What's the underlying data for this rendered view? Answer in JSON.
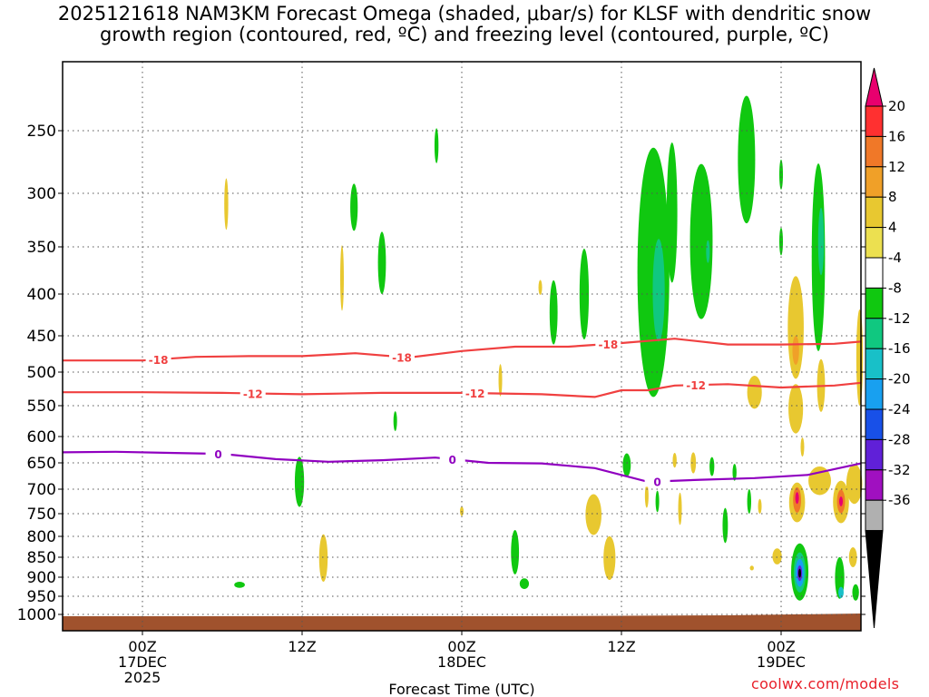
{
  "title_line1": "2025121618 NAM3KM Forecast Omega (shaded, μbar/s) for KLSF with dendritic snow",
  "title_line2": "growth region (contoured, red, ºC) and freezing level (contoured, purple, ºC)",
  "credit": "coolwx.com/models",
  "chart_data": {
    "type": "time-height cross section",
    "xlabel": "Forecast Time (UTC)",
    "y_axis": "pressure (hPa), inverted",
    "yticks": [
      250,
      300,
      350,
      400,
      450,
      500,
      550,
      600,
      650,
      700,
      750,
      800,
      850,
      900,
      950,
      1000
    ],
    "xticks": [
      {
        "hour": 6,
        "labels": [
          "00Z",
          "17DEC",
          "2025"
        ]
      },
      {
        "hour": 18,
        "labels": [
          "12Z"
        ]
      },
      {
        "hour": 30,
        "labels": [
          "00Z",
          "18DEC"
        ]
      },
      {
        "hour": 42,
        "labels": [
          "12Z"
        ]
      },
      {
        "hour": 54,
        "labels": [
          "00Z",
          "19DEC"
        ]
      }
    ],
    "xrange_hours": [
      0,
      60
    ],
    "grid": "dotted",
    "colorbar": {
      "labels": [
        "20",
        "16",
        "12",
        "8",
        "4",
        "-4",
        "-8",
        "-12",
        "-16",
        "-20",
        "-24",
        "-28",
        "-32",
        "-36"
      ],
      "colors": [
        "#e8006e",
        "#ff3030",
        "#f07828",
        "#f0a028",
        "#e8c830",
        "#ece050",
        "#ffffff",
        "#10c810",
        "#10c880",
        "#18c0c8",
        "#18a0f0",
        "#1850e8",
        "#6020d8",
        "#a010c0",
        "#b0b0b0",
        "#000000"
      ]
    },
    "contours": [
      {
        "label": "-18",
        "color": "#f04040",
        "points": [
          [
            0,
            484
          ],
          [
            6,
            484
          ],
          [
            10,
            479
          ],
          [
            14,
            478
          ],
          [
            18,
            478
          ],
          [
            22,
            474
          ],
          [
            26,
            480
          ],
          [
            30,
            471
          ],
          [
            34,
            465
          ],
          [
            38,
            465
          ],
          [
            42,
            460
          ],
          [
            46,
            454
          ],
          [
            50,
            462
          ],
          [
            54,
            462
          ],
          [
            58,
            461
          ],
          [
            60,
            458
          ]
        ]
      },
      {
        "label": "-12",
        "color": "#f04040",
        "points": [
          [
            0,
            530
          ],
          [
            6,
            530
          ],
          [
            12,
            531
          ],
          [
            18,
            533
          ],
          [
            24,
            531
          ],
          [
            30,
            531
          ],
          [
            36,
            533
          ],
          [
            40,
            537
          ],
          [
            42,
            527
          ],
          [
            44,
            527
          ],
          [
            46,
            520
          ],
          [
            50,
            518
          ],
          [
            54,
            523
          ],
          [
            58,
            520
          ],
          [
            60,
            516
          ]
        ]
      },
      {
        "label": "0",
        "color": "#9000c0",
        "points": [
          [
            0,
            630
          ],
          [
            4,
            629
          ],
          [
            8,
            631
          ],
          [
            12,
            633
          ],
          [
            16,
            643
          ],
          [
            20,
            648
          ],
          [
            24,
            645
          ],
          [
            28,
            640
          ],
          [
            32,
            650
          ],
          [
            36,
            651
          ],
          [
            40,
            660
          ],
          [
            44,
            686
          ],
          [
            48,
            682
          ],
          [
            52,
            679
          ],
          [
            56,
            673
          ],
          [
            60,
            651
          ]
        ]
      }
    ],
    "contour_label_positions": [
      {
        "label": "-18",
        "hour": 7.2
      },
      {
        "label": "-18",
        "hour": 25.5
      },
      {
        "label": "-18",
        "hour": 41.0
      },
      {
        "label": "-12",
        "hour": 14.3
      },
      {
        "label": "-12",
        "hour": 31.0
      },
      {
        "label": "-12",
        "hour": 47.6
      },
      {
        "label": "0",
        "hour": 11.7
      },
      {
        "label": "0",
        "hour": 29.3
      },
      {
        "label": "0",
        "hour": 44.7
      }
    ],
    "omega_blobs": [
      {
        "hour": 12.3,
        "p": 310,
        "wh": 0.15,
        "ph": 24,
        "v": 4
      },
      {
        "hour": 21.0,
        "p": 383,
        "wh": 0.12,
        "ph": 37,
        "v": 4
      },
      {
        "hour": 21.9,
        "p": 313,
        "wh": 0.28,
        "ph": 22,
        "v": -6
      },
      {
        "hour": 24.0,
        "p": 367,
        "wh": 0.3,
        "ph": 33,
        "v": -6
      },
      {
        "hour": 28.1,
        "p": 262,
        "wh": 0.15,
        "ph": 14,
        "v": -6
      },
      {
        "hour": 32.9,
        "p": 512,
        "wh": 0.12,
        "ph": 24,
        "v": 4
      },
      {
        "hour": 35.9,
        "p": 393,
        "wh": 0.12,
        "ph": 8,
        "v": 4
      },
      {
        "hour": 36.9,
        "p": 422,
        "wh": 0.3,
        "ph": 40,
        "v": -6
      },
      {
        "hour": 39.2,
        "p": 400,
        "wh": 0.35,
        "ph": 55,
        "v": -6
      },
      {
        "hour": 44.4,
        "p": 377,
        "wh": 1.2,
        "ph": 160,
        "v": -6
      },
      {
        "hour": 44.8,
        "p": 396,
        "wh": 0.45,
        "ph": 62,
        "v": -9
      },
      {
        "hour": 45.8,
        "p": 318,
        "wh": 0.4,
        "ph": 70,
        "v": -6
      },
      {
        "hour": 48.0,
        "p": 345,
        "wh": 0.85,
        "ph": 85,
        "v": -6
      },
      {
        "hour": 48.5,
        "p": 355,
        "wh": 0.1,
        "ph": 12,
        "v": -9
      },
      {
        "hour": 51.4,
        "p": 273,
        "wh": 0.65,
        "ph": 55,
        "v": -6
      },
      {
        "hour": 54.0,
        "p": 285,
        "wh": 0.12,
        "ph": 12,
        "v": -6
      },
      {
        "hour": 54.0,
        "p": 345,
        "wh": 0.12,
        "ph": 14,
        "v": -6
      },
      {
        "hour": 56.8,
        "p": 361,
        "wh": 0.5,
        "ph": 110,
        "v": -6
      },
      {
        "hour": 57.0,
        "p": 345,
        "wh": 0.22,
        "ph": 35,
        "v": -9
      },
      {
        "hour": 55.1,
        "p": 440,
        "wh": 0.6,
        "ph": 70,
        "v": 4
      },
      {
        "hour": 55.1,
        "p": 470,
        "wh": 0.25,
        "ph": 20,
        "v": 8
      },
      {
        "hour": 55.1,
        "p": 555,
        "wh": 0.55,
        "ph": 40,
        "v": 4
      },
      {
        "hour": 52.0,
        "p": 530,
        "wh": 0.55,
        "ph": 25,
        "v": 4
      },
      {
        "hour": 55.6,
        "p": 620,
        "wh": 0.12,
        "ph": 18,
        "v": 4
      },
      {
        "hour": 59.9,
        "p": 480,
        "wh": 0.25,
        "ph": 70,
        "v": 4
      },
      {
        "hour": 57.0,
        "p": 520,
        "wh": 0.3,
        "ph": 40,
        "v": 4
      },
      {
        "hour": 17.8,
        "p": 686,
        "wh": 0.35,
        "ph": 50,
        "v": -6
      },
      {
        "hour": 25.0,
        "p": 575,
        "wh": 0.12,
        "ph": 16,
        "v": -6
      },
      {
        "hour": 13.3,
        "p": 920,
        "wh": 0.4,
        "ph": 8,
        "v": -6
      },
      {
        "hour": 19.6,
        "p": 852,
        "wh": 0.32,
        "ph": 60,
        "v": 4
      },
      {
        "hour": 30.0,
        "p": 745,
        "wh": 0.1,
        "ph": 10,
        "v": 4
      },
      {
        "hour": 34.0,
        "p": 838,
        "wh": 0.3,
        "ph": 55,
        "v": -6
      },
      {
        "hour": 34.7,
        "p": 917,
        "wh": 0.35,
        "ph": 14,
        "v": -6
      },
      {
        "hour": 39.9,
        "p": 752,
        "wh": 0.6,
        "ph": 45,
        "v": 4
      },
      {
        "hour": 41.1,
        "p": 852,
        "wh": 0.45,
        "ph": 55,
        "v": 4
      },
      {
        "hour": 42.4,
        "p": 654,
        "wh": 0.3,
        "ph": 22,
        "v": -6
      },
      {
        "hour": 43.9,
        "p": 714,
        "wh": 0.12,
        "ph": 24,
        "v": 4
      },
      {
        "hour": 44.7,
        "p": 725,
        "wh": 0.1,
        "ph": 22,
        "v": -6
      },
      {
        "hour": 46.0,
        "p": 645,
        "wh": 0.15,
        "ph": 14,
        "v": 4
      },
      {
        "hour": 46.4,
        "p": 740,
        "wh": 0.12,
        "ph": 35,
        "v": 4
      },
      {
        "hour": 47.4,
        "p": 650,
        "wh": 0.2,
        "ph": 20,
        "v": 4
      },
      {
        "hour": 48.8,
        "p": 657,
        "wh": 0.18,
        "ph": 18,
        "v": -6
      },
      {
        "hour": 49.8,
        "p": 776,
        "wh": 0.2,
        "ph": 40,
        "v": -6
      },
      {
        "hour": 50.5,
        "p": 668,
        "wh": 0.15,
        "ph": 16,
        "v": -6
      },
      {
        "hour": 51.6,
        "p": 725,
        "wh": 0.15,
        "ph": 25,
        "v": -6
      },
      {
        "hour": 52.4,
        "p": 735,
        "wh": 0.1,
        "ph": 15,
        "v": 4
      },
      {
        "hour": 51.8,
        "p": 877,
        "wh": 0.15,
        "ph": 6,
        "v": 4
      },
      {
        "hour": 55.2,
        "p": 727,
        "wh": 0.6,
        "ph": 42,
        "v": 4
      },
      {
        "hour": 55.2,
        "p": 722,
        "wh": 0.3,
        "ph": 26,
        "v": 12
      },
      {
        "hour": 55.2,
        "p": 718,
        "wh": 0.12,
        "ph": 12,
        "v": 20
      },
      {
        "hour": 56.9,
        "p": 684,
        "wh": 0.85,
        "ph": 28,
        "v": 4
      },
      {
        "hour": 58.5,
        "p": 726,
        "wh": 0.6,
        "ph": 45,
        "v": 4
      },
      {
        "hour": 58.5,
        "p": 725,
        "wh": 0.3,
        "ph": 24,
        "v": 12
      },
      {
        "hour": 58.5,
        "p": 725,
        "wh": 0.12,
        "ph": 10,
        "v": 20
      },
      {
        "hour": 59.5,
        "p": 690,
        "wh": 0.6,
        "ph": 40,
        "v": 4
      },
      {
        "hour": 53.7,
        "p": 848,
        "wh": 0.35,
        "ph": 20,
        "v": 4
      },
      {
        "hour": 55.4,
        "p": 887,
        "wh": 0.65,
        "ph": 75,
        "v": -6
      },
      {
        "hour": 55.4,
        "p": 888,
        "wh": 0.45,
        "ph": 52,
        "v": -11
      },
      {
        "hour": 55.4,
        "p": 889,
        "wh": 0.33,
        "ph": 36,
        "v": -18
      },
      {
        "hour": 55.4,
        "p": 890,
        "wh": 0.18,
        "ph": 20,
        "v": -26
      },
      {
        "hour": 58.4,
        "p": 902,
        "wh": 0.35,
        "ph": 55,
        "v": -6
      },
      {
        "hour": 58.5,
        "p": 940,
        "wh": 0.2,
        "ph": 15,
        "v": -14
      },
      {
        "hour": 59.6,
        "p": 940,
        "wh": 0.25,
        "ph": 22,
        "v": -6
      },
      {
        "hour": 59.4,
        "p": 850,
        "wh": 0.3,
        "ph": 25,
        "v": 4
      }
    ]
  }
}
